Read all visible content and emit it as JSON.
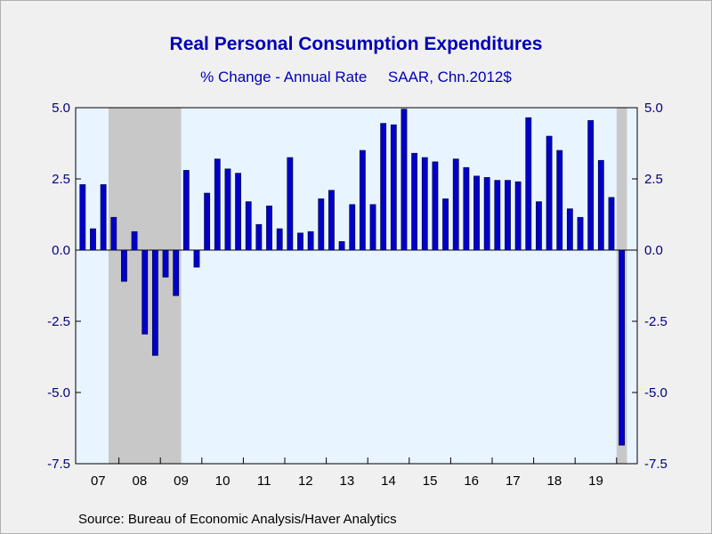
{
  "chart_data": {
    "type": "bar",
    "title": "Real Personal Consumption Expenditures",
    "subtitle": "% Change - Annual Rate     SAAR, Chn.2012$",
    "xlabel": "",
    "ylabel": "",
    "ylim": [
      -7.5,
      5.0
    ],
    "yticks": [
      "5.0",
      "2.5",
      "0.0",
      "-2.5",
      "-5.0",
      "-7.5"
    ],
    "year_labels": [
      "07",
      "08",
      "09",
      "10",
      "11",
      "12",
      "13",
      "14",
      "15",
      "16",
      "17",
      "18",
      "19"
    ],
    "start_year": 2007,
    "start_quarter": 1,
    "values": [
      2.3,
      0.75,
      2.3,
      1.15,
      -1.1,
      0.65,
      -2.95,
      -3.7,
      -0.95,
      -1.6,
      2.8,
      -0.6,
      2.0,
      3.2,
      2.85,
      2.7,
      1.7,
      0.9,
      1.55,
      0.75,
      3.25,
      0.6,
      0.65,
      1.8,
      2.1,
      0.3,
      1.6,
      3.5,
      1.6,
      4.45,
      4.4,
      4.95,
      3.4,
      3.25,
      3.1,
      1.8,
      3.2,
      2.9,
      2.6,
      2.55,
      2.45,
      2.45,
      2.4,
      4.65,
      1.7,
      4.0,
      3.5,
      1.45,
      1.15,
      4.55,
      3.15,
      1.85,
      -6.85
    ],
    "recession_shading": [
      [
        2007.75,
        2009.5
      ],
      [
        2020.0,
        2020.25
      ]
    ],
    "bar_color": "#0000c8",
    "shading_color": "#c8c8c8",
    "plot_background": "#e8f4ff",
    "grid": false
  },
  "source": "Source:  Bureau of Economic Analysis/Haver Analytics"
}
